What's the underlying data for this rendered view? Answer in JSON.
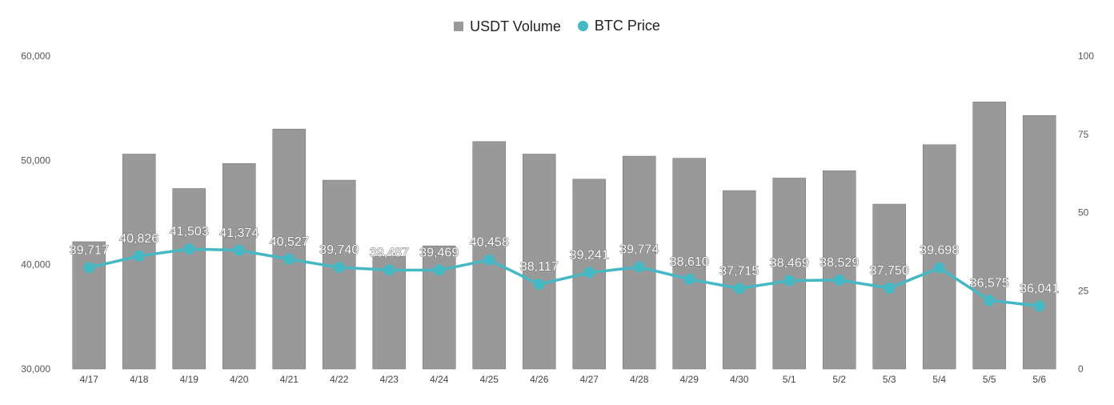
{
  "chart_data": {
    "type": "bar",
    "categories": [
      "4/17",
      "4/18",
      "4/19",
      "4/20",
      "4/21",
      "4/22",
      "4/23",
      "4/24",
      "4/25",
      "4/26",
      "4/27",
      "4/28",
      "4/29",
      "4/30",
      "5/1",
      "5/2",
      "5/3",
      "5/4",
      "5/5",
      "5/6"
    ],
    "series": [
      {
        "name": "USDT Volume",
        "type": "bar",
        "axis": "left",
        "color": "#999999",
        "values": [
          42200,
          50600,
          47300,
          49700,
          53000,
          48100,
          40800,
          41800,
          51800,
          50600,
          48200,
          50400,
          50200,
          47100,
          48300,
          49000,
          45800,
          51500,
          55600,
          54300
        ]
      },
      {
        "name": "BTC Price",
        "type": "line",
        "axis": "left",
        "color": "#45b8c4",
        "values": [
          39717,
          40826,
          41503,
          41374,
          40527,
          39740,
          39487,
          39469,
          40458,
          38117,
          39241,
          39774,
          38610,
          37715,
          38469,
          38529,
          37750,
          39698,
          36575,
          36041
        ],
        "labels": [
          "39,717",
          "40,826",
          "41,503",
          "41,374",
          "40,527",
          "39,740",
          "39,487",
          "39,469",
          "40,458",
          "38,117",
          "39,241",
          "39,774",
          "38,610",
          "37,715",
          "38,469",
          "38,529",
          "37,750",
          "39,698",
          "36,575",
          "36,041"
        ]
      }
    ],
    "y_left": {
      "ylim": [
        30000,
        60000
      ],
      "ticks": [
        "30,000",
        "40,000",
        "50,000",
        "60,000"
      ]
    },
    "y_right": {
      "ylim": [
        0,
        100
      ],
      "ticks": [
        "0",
        "25",
        "50",
        "75",
        "100"
      ]
    },
    "xlabel": "",
    "ylabel": "",
    "grid": false,
    "legend": "top-center"
  }
}
